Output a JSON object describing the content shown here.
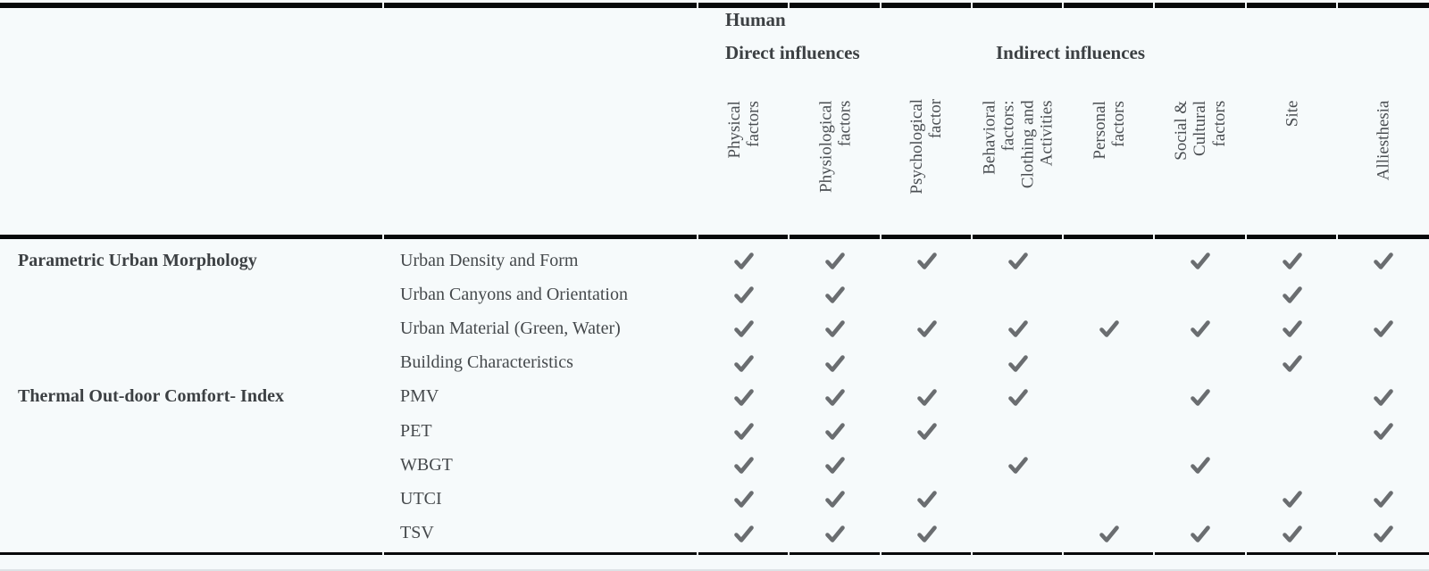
{
  "header": {
    "human_label": "Human",
    "direct_label": "Direct influences",
    "indirect_label": "Indirect influences"
  },
  "colors": {
    "background": "#f6fafb",
    "rule": "#07090a",
    "heading_text": "#3c4043",
    "body_text": "#45494c",
    "check": "#6a6d70"
  },
  "icons": {
    "check": "checkmark-icon"
  },
  "chart_data": {
    "type": "table",
    "title": "Influences matrix: parametric urban morphology and thermal outdoor comfort indices vs. human comfort factors",
    "columns": [
      {
        "lines": [
          "Physical factors"
        ]
      },
      {
        "lines": [
          "Physiological",
          "factors"
        ]
      },
      {
        "lines": [
          "Psychological",
          "factor"
        ]
      },
      {
        "lines": [
          "Behavioral factors:",
          "Clothing and",
          "Activities"
        ]
      },
      {
        "lines": [
          "Personal factors"
        ]
      },
      {
        "lines": [
          "Social & Cultural",
          "factors"
        ]
      },
      {
        "lines": [
          "Site"
        ]
      },
      {
        "lines": [
          "Alliesthesia"
        ]
      }
    ],
    "row_groups": [
      {
        "group": "Parametric Urban Morphology",
        "rows": [
          {
            "label": "Urban Density and Form",
            "checks": [
              1,
              1,
              1,
              1,
              0,
              1,
              1,
              1
            ]
          },
          {
            "label": "Urban Canyons and Orientation",
            "checks": [
              1,
              1,
              0,
              0,
              0,
              0,
              1,
              0
            ]
          },
          {
            "label": "Urban Material (Green, Water)",
            "checks": [
              1,
              1,
              1,
              1,
              1,
              1,
              1,
              1
            ]
          },
          {
            "label": "Building Characteristics",
            "checks": [
              1,
              1,
              0,
              1,
              0,
              0,
              1,
              0
            ]
          }
        ]
      },
      {
        "group": "Thermal Out-door Comfort- Index",
        "rows": [
          {
            "label": "PMV",
            "checks": [
              1,
              1,
              1,
              1,
              0,
              1,
              0,
              1
            ]
          },
          {
            "label": "PET",
            "checks": [
              1,
              1,
              1,
              0,
              0,
              0,
              0,
              1
            ]
          },
          {
            "label": "WBGT",
            "checks": [
              1,
              1,
              0,
              1,
              0,
              1,
              0,
              0
            ]
          },
          {
            "label": "UTCI",
            "checks": [
              1,
              1,
              1,
              0,
              0,
              0,
              1,
              1
            ]
          },
          {
            "label": "TSV",
            "checks": [
              1,
              1,
              1,
              0,
              1,
              1,
              1,
              1
            ]
          }
        ]
      }
    ]
  }
}
